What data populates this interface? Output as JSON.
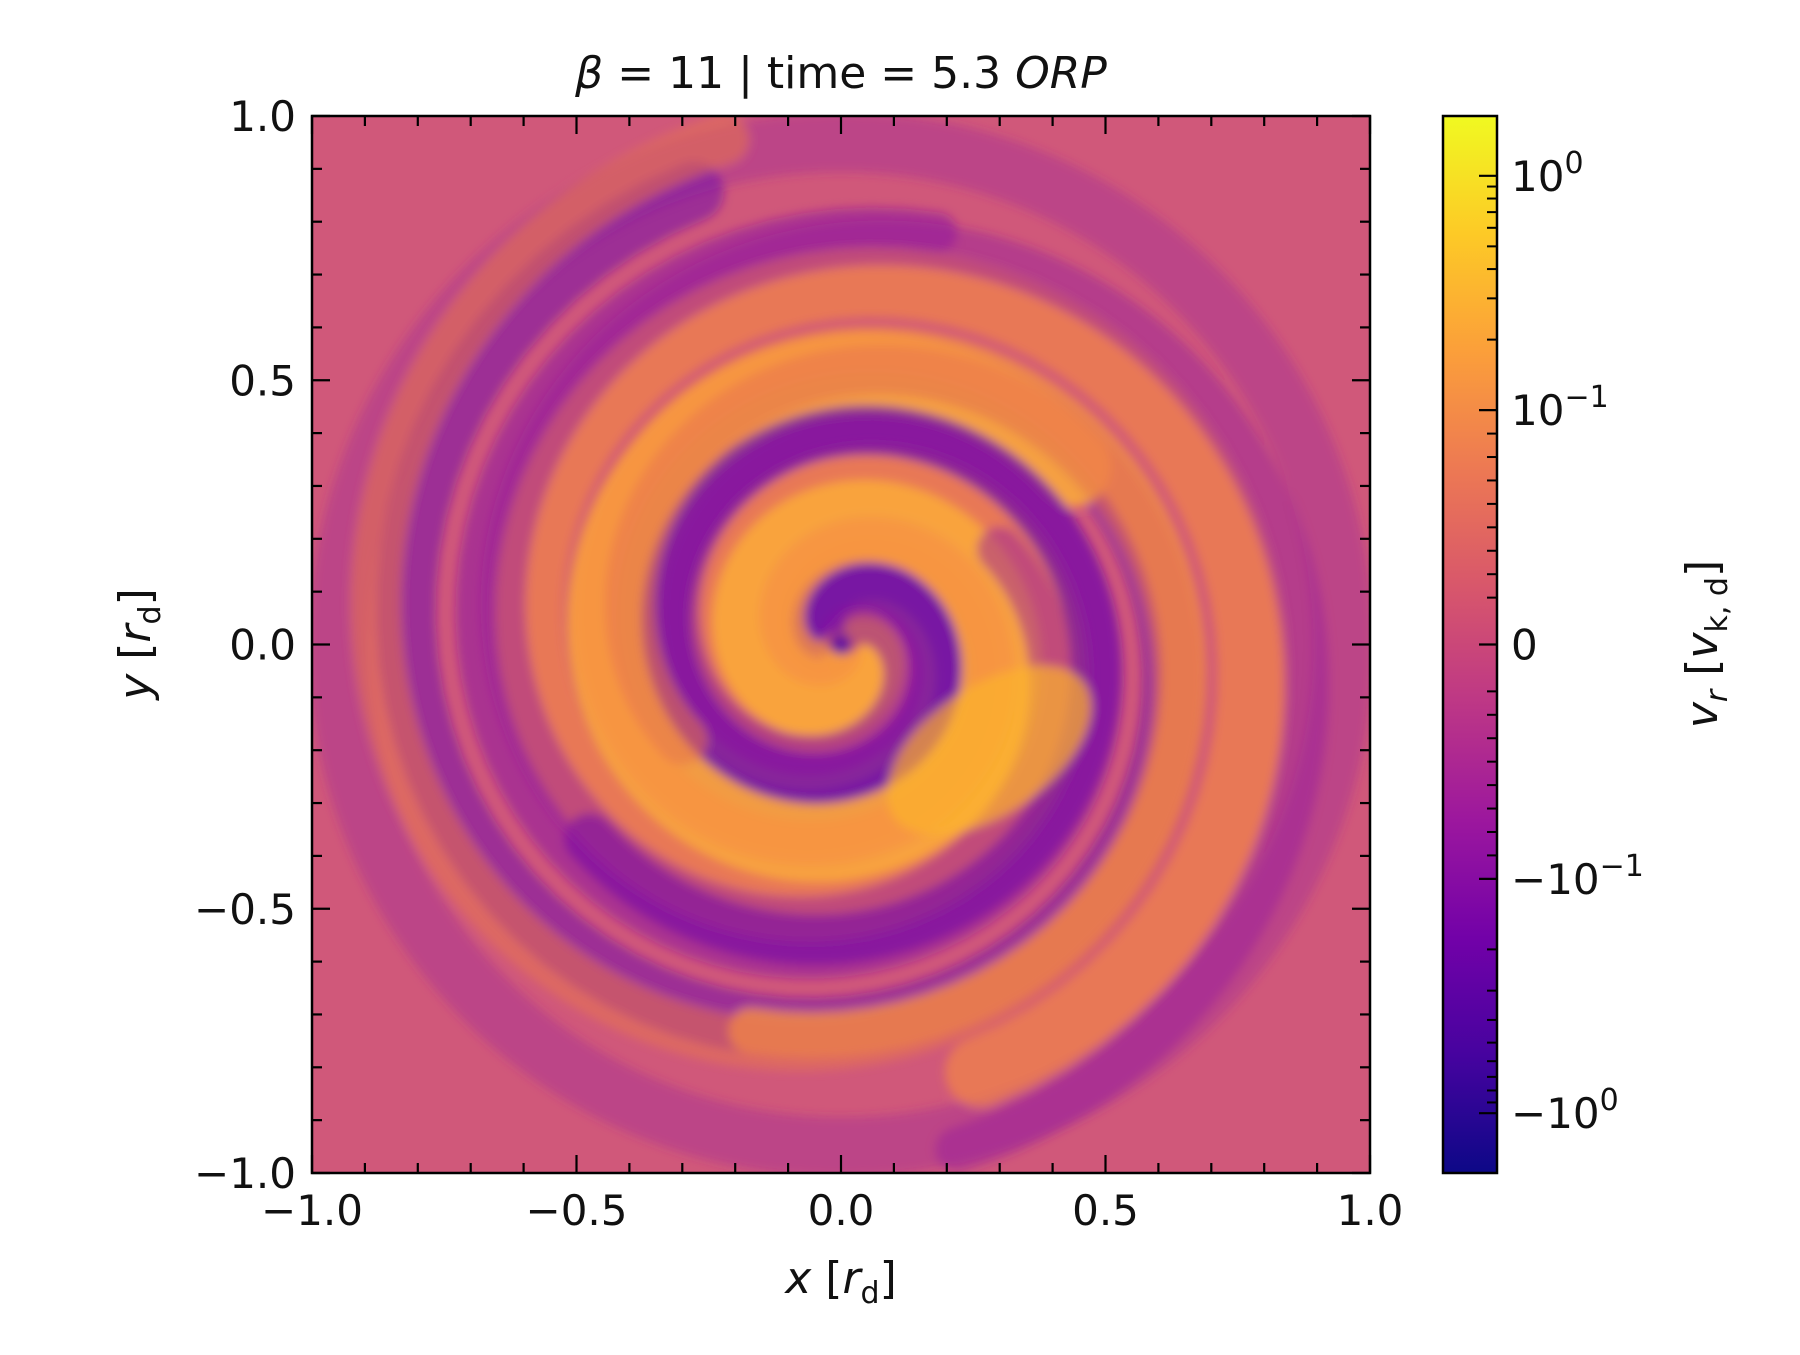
{
  "chart_data": {
    "type": "heatmap",
    "title": {
      "beta_symbol": "β",
      "beta_text": " = 11 | time = 5.3 ",
      "units_italic": "ORP"
    },
    "x_axis": {
      "label_var": "x",
      "label_bracket_open": " [",
      "label_unit_main": "r",
      "label_unit_sub": "d",
      "label_bracket_close": "]",
      "lim": [
        -1.0,
        1.0
      ],
      "ticks": [
        -1.0,
        -0.5,
        0.0,
        0.5,
        1.0
      ],
      "tick_labels": [
        "−1.0",
        "−0.5",
        "0.0",
        "0.5",
        "1.0"
      ],
      "minor_step": 0.1
    },
    "y_axis": {
      "label_var": "y",
      "label_bracket_open": " [",
      "label_unit_main": "r",
      "label_unit_sub": "d",
      "label_bracket_close": "]",
      "lim": [
        -1.0,
        1.0
      ],
      "ticks": [
        -1.0,
        -0.5,
        0.0,
        0.5,
        1.0
      ],
      "tick_labels": [
        "−1.0",
        "−0.5",
        "0.0",
        "0.5",
        "1.0"
      ],
      "minor_step": 0.1
    },
    "colorbar": {
      "label_var": "v",
      "label_var_sub": "r",
      "label_bracket_open": " [",
      "label_unit_main": "v",
      "label_unit_sub": "k, d",
      "label_bracket_close": "]",
      "scale": "symlog",
      "colormap": "plasma",
      "ticks": [
        {
          "value": 1,
          "base": "10",
          "exp": "0",
          "sign": ""
        },
        {
          "value": 0.1,
          "base": "10",
          "exp": "−1",
          "sign": ""
        },
        {
          "value": 0,
          "base": "0",
          "exp": "",
          "sign": ""
        },
        {
          "value": -0.1,
          "base": "10",
          "exp": "−1",
          "sign": "−"
        },
        {
          "value": -1,
          "base": "10",
          "exp": "0",
          "sign": "−"
        }
      ],
      "colors": [
        "#0d0887",
        "#46039f",
        "#7201a8",
        "#9c179e",
        "#bd3786",
        "#d8576b",
        "#ed7953",
        "#fb9f3a",
        "#fdca26",
        "#f0f921"
      ]
    },
    "grid": false,
    "description_field": "radial velocity map of a spiral disk; purple = inflow, orange = outflow"
  }
}
